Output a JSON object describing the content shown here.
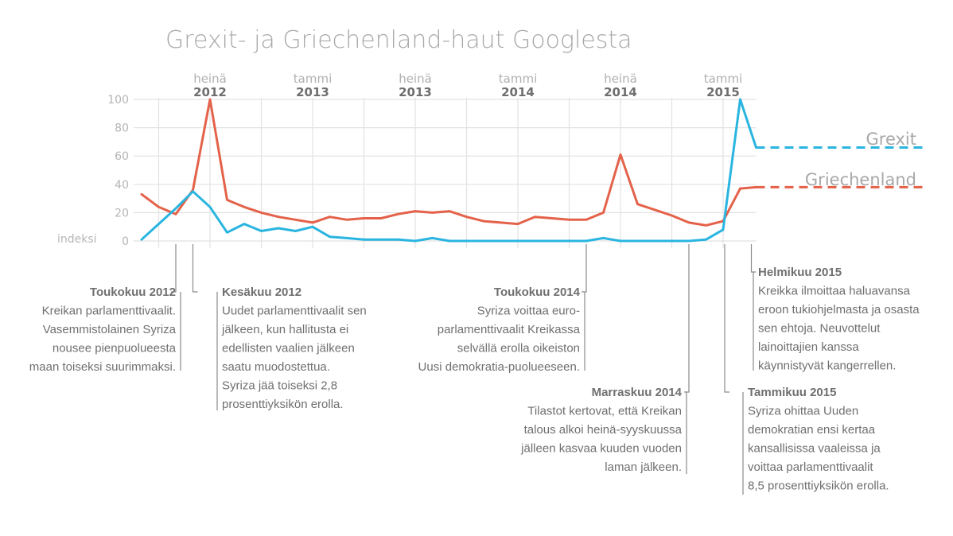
{
  "title": "Grexit- ja Griechenland-haut Googlesta",
  "y_axis_label": "indeksi",
  "colors": {
    "grexit": "#29b5e0",
    "griechenland": "#e4624a",
    "grid": "#e2e2e2",
    "text": "#6f6f6f"
  },
  "chart_data": {
    "type": "line",
    "title": "Grexit- ja Griechenland-haut Googlesta",
    "xlabel": "",
    "ylabel": "indeksi",
    "ylim": [
      0,
      100
    ],
    "yticks": [
      "0",
      "20",
      "40",
      "60",
      "80",
      "100"
    ],
    "xticks": [
      {
        "month": "heinä",
        "year": "2012",
        "x": "2012-07"
      },
      {
        "month": "tammi",
        "year": "2013",
        "x": "2013-01"
      },
      {
        "month": "heinä",
        "year": "2013",
        "x": "2013-07"
      },
      {
        "month": "tammi",
        "year": "2014",
        "x": "2014-01"
      },
      {
        "month": "heinä",
        "year": "2014",
        "x": "2014-07"
      },
      {
        "month": "tammi",
        "year": "2015",
        "x": "2015-01"
      }
    ],
    "grid": true,
    "legend_position": "right",
    "x": [
      "2012-03",
      "2012-04",
      "2012-05",
      "2012-06",
      "2012-07",
      "2012-08",
      "2012-09",
      "2012-10",
      "2012-11",
      "2012-12",
      "2013-01",
      "2013-02",
      "2013-03",
      "2013-04",
      "2013-05",
      "2013-06",
      "2013-07",
      "2013-08",
      "2013-09",
      "2013-10",
      "2013-11",
      "2013-12",
      "2014-01",
      "2014-02",
      "2014-03",
      "2014-04",
      "2014-05",
      "2014-06",
      "2014-07",
      "2014-08",
      "2014-09",
      "2014-10",
      "2014-11",
      "2014-12",
      "2015-01",
      "2015-02"
    ],
    "series": [
      {
        "name": "Griechenland",
        "values": [
          33,
          24,
          19,
          36,
          100,
          29,
          24,
          20,
          17,
          15,
          13,
          17,
          15,
          16,
          16,
          19,
          21,
          20,
          21,
          17,
          14,
          13,
          12,
          17,
          16,
          15,
          15,
          20,
          61,
          26,
          22,
          18,
          13,
          11,
          14,
          37
        ]
      },
      {
        "name": "Grexit",
        "values": [
          1,
          12,
          23,
          35,
          24,
          6,
          12,
          7,
          9,
          7,
          10,
          3,
          2,
          1,
          1,
          1,
          0,
          2,
          0,
          0,
          0,
          0,
          0,
          0,
          0,
          0,
          0,
          2,
          0,
          0,
          0,
          0,
          0,
          1,
          8,
          100
        ]
      }
    ],
    "projection": {
      "Grexit": 66,
      "Griechenland": 38
    }
  },
  "annotations": [
    {
      "title": "Toukokuu 2012",
      "lines": [
        "Kreikan parlamenttivaalit.",
        "Vasemmistolainen Syriza",
        "nousee pienpuolueesta",
        "maan toiseksi suurimmaksi."
      ]
    },
    {
      "title": "Kesäkuu 2012",
      "lines": [
        "Uudet parlamenttivaalit sen",
        "jälkeen, kun hallitusta ei",
        "edellisten vaalien jälkeen",
        "saatu muodostettua.",
        "Syriza jää toiseksi 2,8",
        "prosenttiyksikön erolla."
      ]
    },
    {
      "title": "Toukokuu 2014",
      "lines": [
        "Syriza voittaa euro-",
        "parlamenttivaalit Kreikassa",
        "selvällä erolla oikeiston",
        "Uusi demokratia-puolueeseen."
      ]
    },
    {
      "title": "Marraskuu 2014",
      "lines": [
        "Tilastot kertovat, että Kreikan",
        "talous alkoi heinä-syyskuussa",
        "jälleen kasvaa kuuden vuoden",
        "laman jälkeen."
      ]
    },
    {
      "title": "Helmikuu 2015",
      "lines": [
        "Kreikka ilmoittaa haluavansa",
        "eroon tukiohjelmasta ja osasta",
        "sen ehtoja. Neuvottelut",
        "lainoittajien kanssa",
        "käynnistyvät kangerrellen."
      ]
    },
    {
      "title": "Tammikuu 2015",
      "lines": [
        "Syriza ohittaa Uuden",
        "demokratian ensi kertaa",
        "kansallisissa vaaleissa ja",
        "voittaa parlamenttivaalit",
        "8,5 prosenttiyksikön erolla."
      ]
    }
  ]
}
